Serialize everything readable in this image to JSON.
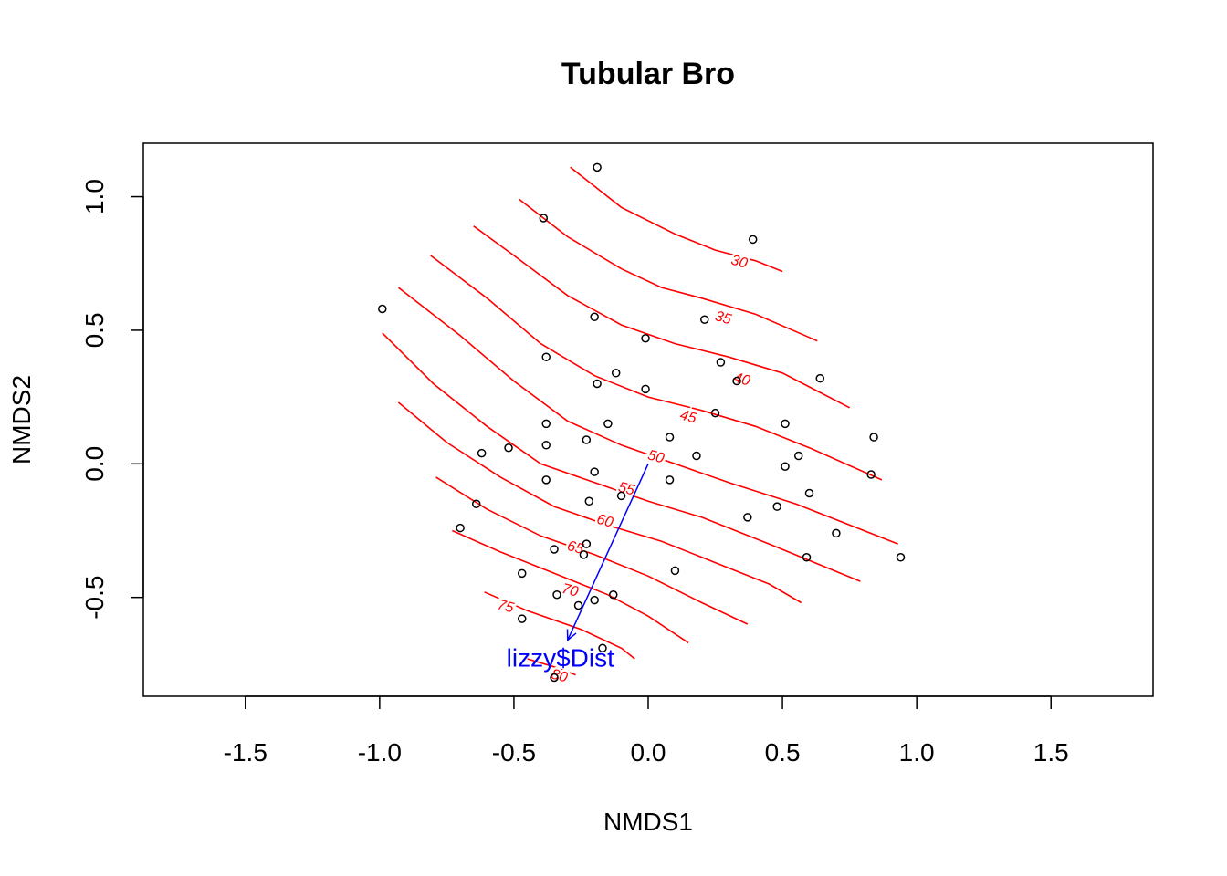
{
  "chart_data": {
    "type": "scatter",
    "title": "Tubular Bro",
    "xlabel": "NMDS1",
    "ylabel": "NMDS2",
    "xlim": [
      -1.88,
      1.88
    ],
    "ylim": [
      -0.87,
      1.2
    ],
    "x_ticks": [
      -1.5,
      -1.0,
      -0.5,
      0.0,
      0.5,
      1.0,
      1.5
    ],
    "x_tick_labels": [
      "-1.5",
      "-1.0",
      "-0.5",
      "0.0",
      "0.5",
      "1.0",
      "1.5"
    ],
    "y_ticks": [
      -0.5,
      0.0,
      0.5,
      1.0
    ],
    "y_tick_labels": [
      "-0.5",
      "0.0",
      "0.5",
      "1.0"
    ],
    "grid": false,
    "colors": {
      "points": "#000000",
      "contours": "#ff0000",
      "vector": "#0000ff"
    },
    "points": [
      {
        "x": -0.19,
        "y": 1.11
      },
      {
        "x": -0.39,
        "y": 0.92
      },
      {
        "x": 0.39,
        "y": 0.84
      },
      {
        "x": -0.99,
        "y": 0.58
      },
      {
        "x": -0.2,
        "y": 0.55
      },
      {
        "x": 0.21,
        "y": 0.54
      },
      {
        "x": -0.01,
        "y": 0.47
      },
      {
        "x": -0.38,
        "y": 0.4
      },
      {
        "x": 0.27,
        "y": 0.38
      },
      {
        "x": -0.12,
        "y": 0.34
      },
      {
        "x": -0.19,
        "y": 0.3
      },
      {
        "x": 0.33,
        "y": 0.31
      },
      {
        "x": 0.64,
        "y": 0.32
      },
      {
        "x": -0.01,
        "y": 0.28
      },
      {
        "x": 0.25,
        "y": 0.19
      },
      {
        "x": -0.38,
        "y": 0.15
      },
      {
        "x": -0.15,
        "y": 0.15
      },
      {
        "x": 0.51,
        "y": 0.15
      },
      {
        "x": 0.84,
        "y": 0.1
      },
      {
        "x": 0.08,
        "y": 0.1
      },
      {
        "x": -0.23,
        "y": 0.09
      },
      {
        "x": -0.38,
        "y": 0.07
      },
      {
        "x": -0.52,
        "y": 0.06
      },
      {
        "x": -0.62,
        "y": 0.04
      },
      {
        "x": 0.18,
        "y": 0.03
      },
      {
        "x": 0.56,
        "y": 0.03
      },
      {
        "x": 0.51,
        "y": -0.01
      },
      {
        "x": -0.2,
        "y": -0.03
      },
      {
        "x": 0.83,
        "y": -0.04
      },
      {
        "x": -0.38,
        "y": -0.06
      },
      {
        "x": 0.08,
        "y": -0.06
      },
      {
        "x": -0.1,
        "y": -0.12
      },
      {
        "x": 0.6,
        "y": -0.11
      },
      {
        "x": -0.22,
        "y": -0.14
      },
      {
        "x": -0.64,
        "y": -0.15
      },
      {
        "x": 0.48,
        "y": -0.16
      },
      {
        "x": 0.37,
        "y": -0.2
      },
      {
        "x": -0.7,
        "y": -0.24
      },
      {
        "x": 0.7,
        "y": -0.26
      },
      {
        "x": -0.23,
        "y": -0.3
      },
      {
        "x": -0.35,
        "y": -0.32
      },
      {
        "x": -0.24,
        "y": -0.34
      },
      {
        "x": 0.59,
        "y": -0.35
      },
      {
        "x": 0.94,
        "y": -0.35
      },
      {
        "x": 0.1,
        "y": -0.4
      },
      {
        "x": -0.47,
        "y": -0.41
      },
      {
        "x": -0.34,
        "y": -0.49
      },
      {
        "x": -0.13,
        "y": -0.49
      },
      {
        "x": -0.2,
        "y": -0.51
      },
      {
        "x": -0.26,
        "y": -0.53
      },
      {
        "x": -0.47,
        "y": -0.58
      },
      {
        "x": -0.17,
        "y": -0.69
      },
      {
        "x": -0.35,
        "y": -0.8
      }
    ],
    "contours": [
      {
        "level": "30",
        "points": [
          [
            -0.29,
            1.11
          ],
          [
            -0.1,
            0.96
          ],
          [
            0.1,
            0.86
          ],
          [
            0.25,
            0.8
          ],
          [
            0.4,
            0.76
          ],
          [
            0.5,
            0.72
          ]
        ],
        "label_at": [
          0.34,
          0.76
        ]
      },
      {
        "level": "35",
        "points": [
          [
            -0.48,
            0.99
          ],
          [
            -0.3,
            0.85
          ],
          [
            -0.1,
            0.73
          ],
          [
            0.05,
            0.66
          ],
          [
            0.2,
            0.62
          ],
          [
            0.4,
            0.56
          ],
          [
            0.63,
            0.46
          ]
        ],
        "label_at": [
          0.28,
          0.55
        ]
      },
      {
        "level": "40",
        "points": [
          [
            -0.65,
            0.89
          ],
          [
            -0.5,
            0.78
          ],
          [
            -0.3,
            0.63
          ],
          [
            -0.1,
            0.52
          ],
          [
            0.1,
            0.45
          ],
          [
            0.3,
            0.4
          ],
          [
            0.5,
            0.34
          ],
          [
            0.75,
            0.21
          ]
        ],
        "label_at": [
          0.35,
          0.32
        ]
      },
      {
        "level": "45",
        "points": [
          [
            -0.81,
            0.78
          ],
          [
            -0.6,
            0.62
          ],
          [
            -0.4,
            0.45
          ],
          [
            -0.2,
            0.33
          ],
          [
            0.0,
            0.25
          ],
          [
            0.2,
            0.2
          ],
          [
            0.4,
            0.14
          ],
          [
            0.6,
            0.06
          ],
          [
            0.87,
            -0.06
          ]
        ],
        "label_at": [
          0.15,
          0.18
        ]
      },
      {
        "level": "50",
        "points": [
          [
            -0.93,
            0.66
          ],
          [
            -0.7,
            0.48
          ],
          [
            -0.5,
            0.31
          ],
          [
            -0.3,
            0.16
          ],
          [
            -0.1,
            0.07
          ],
          [
            0.1,
            0.0
          ],
          [
            0.3,
            -0.07
          ],
          [
            0.55,
            -0.15
          ],
          [
            0.93,
            -0.3
          ]
        ],
        "label_at": [
          0.03,
          0.03
        ]
      },
      {
        "level": "55",
        "points": [
          [
            -0.99,
            0.49
          ],
          [
            -0.8,
            0.3
          ],
          [
            -0.6,
            0.14
          ],
          [
            -0.4,
            0.0
          ],
          [
            -0.2,
            -0.07
          ],
          [
            0.0,
            -0.14
          ],
          [
            0.2,
            -0.2
          ],
          [
            0.45,
            -0.3
          ],
          [
            0.79,
            -0.44
          ]
        ],
        "label_at": [
          -0.08,
          -0.09
        ]
      },
      {
        "level": "60",
        "points": [
          [
            -0.93,
            0.23
          ],
          [
            -0.75,
            0.08
          ],
          [
            -0.55,
            -0.05
          ],
          [
            -0.35,
            -0.16
          ],
          [
            -0.15,
            -0.23
          ],
          [
            0.05,
            -0.29
          ],
          [
            0.25,
            -0.37
          ],
          [
            0.45,
            -0.45
          ],
          [
            0.57,
            -0.52
          ]
        ],
        "label_at": [
          -0.16,
          -0.21
        ]
      },
      {
        "level": "65",
        "points": [
          [
            -0.79,
            -0.05
          ],
          [
            -0.6,
            -0.17
          ],
          [
            -0.4,
            -0.27
          ],
          [
            -0.2,
            -0.34
          ],
          [
            0.0,
            -0.42
          ],
          [
            0.2,
            -0.52
          ],
          [
            0.37,
            -0.6
          ]
        ],
        "label_at": [
          -0.27,
          -0.31
        ]
      },
      {
        "level": "70",
        "points": [
          [
            -0.73,
            -0.25
          ],
          [
            -0.55,
            -0.33
          ],
          [
            -0.35,
            -0.41
          ],
          [
            -0.15,
            -0.49
          ],
          [
            0.0,
            -0.57
          ],
          [
            0.15,
            -0.67
          ]
        ],
        "label_at": [
          -0.29,
          -0.47
        ]
      },
      {
        "level": "75",
        "points": [
          [
            -0.61,
            -0.48
          ],
          [
            -0.45,
            -0.55
          ],
          [
            -0.25,
            -0.62
          ],
          [
            -0.1,
            -0.69
          ],
          [
            -0.05,
            -0.73
          ]
        ],
        "label_at": [
          -0.53,
          -0.53
        ]
      },
      {
        "level": "80",
        "points": [
          [
            -0.45,
            -0.73
          ],
          [
            -0.35,
            -0.76
          ],
          [
            -0.27,
            -0.79
          ]
        ],
        "label_at": [
          -0.33,
          -0.79
        ]
      }
    ],
    "vector": {
      "label": "lizzy$Dist",
      "start": [
        0.0,
        0.0
      ],
      "end": [
        -0.3,
        -0.66
      ]
    }
  }
}
